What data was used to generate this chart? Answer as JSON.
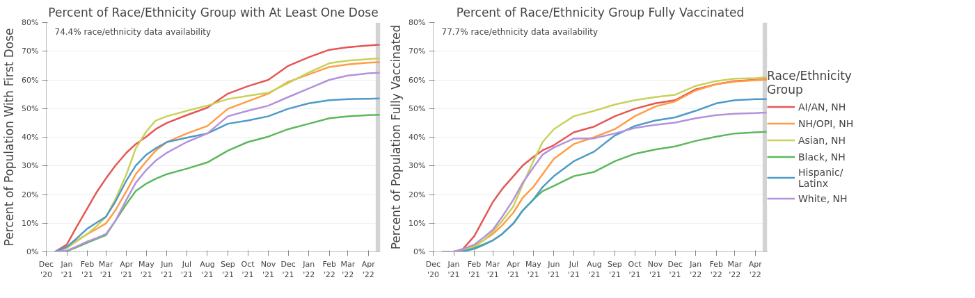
{
  "chart_data": [
    {
      "type": "line",
      "title": "Percent of Race/Ethnicity Group with At Least One Dose",
      "ylabel": "Percent of Population With First Dose",
      "annotations": [
        "74.4% race/ethnicity data availability"
      ],
      "x": [
        "2020-12-14",
        "2021-01-01",
        "2021-01-15",
        "2021-02-01",
        "2021-02-15",
        "2021-03-01",
        "2021-03-15",
        "2021-04-01",
        "2021-04-15",
        "2021-05-01",
        "2021-05-15",
        "2021-06-01",
        "2021-07-01",
        "2021-08-01",
        "2021-09-01",
        "2021-10-01",
        "2021-11-01",
        "2021-12-01",
        "2022-01-01",
        "2022-02-01",
        "2022-03-01",
        "2022-04-01",
        "2022-04-18"
      ],
      "series": [
        {
          "color": "#e45756",
          "values": [
            0,
            2.5,
            8.4,
            15.2,
            20.8,
            25.6,
            30,
            34.6,
            37.6,
            40.2,
            42.8,
            45,
            47.7,
            50.3,
            55.2,
            57.8,
            60,
            64.9,
            67.9,
            70.5,
            71.4,
            72,
            72.3
          ]
        },
        {
          "color": "#ff9d45",
          "values": [
            0,
            1.7,
            3.8,
            6.2,
            8,
            9.9,
            14.4,
            21.2,
            27.1,
            31.6,
            35.3,
            38.3,
            41.3,
            43.9,
            49.9,
            52.5,
            55.2,
            59.3,
            61.9,
            64.5,
            65.4,
            66,
            66.2
          ]
        },
        {
          "color": "#c9d159",
          "values": [
            0,
            1.3,
            3.5,
            6.2,
            9,
            12.2,
            18.2,
            27.1,
            36.1,
            42,
            45.8,
            47.3,
            49.2,
            51,
            53.3,
            54.4,
            55.5,
            58.9,
            62.6,
            65.8,
            66.7,
            67.3,
            67.5
          ]
        },
        {
          "color": "#5bb85b",
          "values": [
            0,
            0.2,
            1.5,
            3.2,
            4.5,
            5.8,
            10.7,
            16.7,
            21.2,
            23.8,
            25.5,
            27.1,
            29,
            31.2,
            35.3,
            38.3,
            40.2,
            42.8,
            44.7,
            46.6,
            47.3,
            47.7,
            47.8
          ]
        },
        {
          "color": "#4e9ac8",
          "values": [
            0,
            1.7,
            4.5,
            8.1,
            10.2,
            12.2,
            17.4,
            24.9,
            30.1,
            33.9,
            36.1,
            38.3,
            39.8,
            41.3,
            44.7,
            45.8,
            47.3,
            49.9,
            51.8,
            52.9,
            53.3,
            53.4,
            53.5
          ]
        },
        {
          "color": "#b392dc",
          "values": [
            0,
            0.4,
            1.8,
            3.6,
            4.8,
            6.2,
            10.7,
            18.2,
            24.1,
            28.6,
            31.8,
            34.6,
            38.3,
            41.3,
            47.3,
            49.2,
            51,
            54,
            57,
            60,
            61.5,
            62.3,
            62.5
          ]
        }
      ],
      "xlim": [
        "2020-12-01",
        "2022-04-19"
      ],
      "xticks": [
        {
          "value": "2020-12-01",
          "label": "Dec\n'20"
        },
        {
          "value": "2021-01-01",
          "label": "Jan\n'21"
        },
        {
          "value": "2021-02-01",
          "label": "Feb\n'21"
        },
        {
          "value": "2021-03-01",
          "label": "Mar\n'21"
        },
        {
          "value": "2021-04-01",
          "label": "Apr\n'21"
        },
        {
          "value": "2021-05-01",
          "label": "May\n'21"
        },
        {
          "value": "2021-06-01",
          "label": "Jun\n'21"
        },
        {
          "value": "2021-07-01",
          "label": "Jul\n'21"
        },
        {
          "value": "2021-08-01",
          "label": "Aug\n'21"
        },
        {
          "value": "2021-09-01",
          "label": "Sep\n'21"
        },
        {
          "value": "2021-10-01",
          "label": "Oct\n'21"
        },
        {
          "value": "2021-11-01",
          "label": "Nov\n'21"
        },
        {
          "value": "2021-12-01",
          "label": "Dec\n'21"
        },
        {
          "value": "2022-01-01",
          "label": "Jan\n'22"
        },
        {
          "value": "2022-02-01",
          "label": "Feb\n'22"
        },
        {
          "value": "2022-03-01",
          "label": "Mar\n'22"
        },
        {
          "value": "2022-04-01",
          "label": "Apr\n'22"
        }
      ],
      "ylim": [
        0,
        80
      ],
      "yticks": [
        {
          "value": 0,
          "label": "0%"
        },
        {
          "value": 10,
          "label": "10%"
        },
        {
          "value": 20,
          "label": "20%"
        },
        {
          "value": 30,
          "label": "30%"
        },
        {
          "value": 40,
          "label": "40%"
        },
        {
          "value": 50,
          "label": "50%"
        },
        {
          "value": 60,
          "label": "60%"
        },
        {
          "value": 70,
          "label": "70%"
        },
        {
          "value": 80,
          "label": "80%"
        }
      ],
      "bands": [
        {
          "axis": "x",
          "from": "2022-04-12",
          "to": "2022-04-19",
          "color": "#d3d3d3"
        }
      ],
      "grid": "y"
    },
    {
      "type": "line",
      "title": "Percent of Race/Ethnicity Group Fully Vaccinated",
      "ylabel": "Percent of Population Fully Vaccinated",
      "annotations": [
        "77.7% race/ethnicity data availability"
      ],
      "legend_title": "Race/Ethnicity\nGroup",
      "x": [
        "2020-12-14",
        "2021-01-01",
        "2021-01-15",
        "2021-02-01",
        "2021-02-15",
        "2021-03-01",
        "2021-03-15",
        "2021-04-01",
        "2021-04-15",
        "2021-05-01",
        "2021-05-15",
        "2021-06-01",
        "2021-07-01",
        "2021-08-01",
        "2021-09-01",
        "2021-10-01",
        "2021-11-01",
        "2021-12-01",
        "2022-01-01",
        "2022-02-01",
        "2022-03-01",
        "2022-04-01",
        "2022-04-18"
      ],
      "series": [
        {
          "name": "AI/AN, NH",
          "color": "#e45756",
          "values": [
            0,
            0,
            1,
            5.5,
            11.4,
            17.4,
            21.9,
            26.4,
            30.1,
            33.1,
            35.4,
            37.2,
            41.7,
            43.7,
            47.3,
            49.9,
            51.8,
            52.9,
            56.7,
            58.5,
            59.6,
            60,
            60.2
          ]
        },
        {
          "name": "NH/OPI, NH",
          "color": "#ff9d45",
          "values": [
            null,
            null,
            0.6,
            2.1,
            4,
            6.2,
            9.2,
            13.7,
            18.9,
            22.6,
            27.1,
            32.4,
            37.6,
            40,
            42.8,
            47.3,
            50.7,
            52.5,
            56.3,
            58.5,
            59.4,
            59.9,
            60
          ]
        },
        {
          "name": "Asian, NH",
          "color": "#c9d159",
          "values": [
            0,
            0,
            0.6,
            1.7,
            4,
            7,
            10.7,
            15.9,
            23.4,
            31.6,
            38.3,
            42.8,
            47.3,
            49.2,
            51.4,
            52.9,
            54,
            54.8,
            57.9,
            59.6,
            60.4,
            60.6,
            60.9
          ]
        },
        {
          "name": "Black, NH",
          "color": "#5bb85b",
          "values": [
            0,
            0,
            0.2,
            1.3,
            2.6,
            4,
            6.2,
            9.9,
            14.4,
            18.2,
            21.2,
            23,
            26.4,
            27.9,
            31.6,
            34.2,
            35.7,
            36.8,
            38.7,
            40.2,
            41.3,
            41.7,
            41.9
          ]
        },
        {
          "name": "Hispanic/\nLatinx",
          "color": "#4e9ac8",
          "values": [
            0,
            0,
            0.2,
            1,
            2.4,
            4,
            6.2,
            9.9,
            14.4,
            18.2,
            22.6,
            26.4,
            31.6,
            35,
            40.6,
            43.9,
            45.8,
            46.9,
            49.2,
            51.8,
            52.9,
            53.3,
            53.3
          ]
        },
        {
          "name": "White, NH",
          "color": "#b392dc",
          "values": [
            0,
            0,
            1,
            2.5,
            5,
            7.7,
            12.2,
            18.2,
            24.1,
            29.4,
            33.9,
            36.4,
            39.5,
            39.6,
            41.3,
            43.2,
            44.3,
            45.1,
            46.6,
            47.7,
            48.2,
            48.4,
            48.6
          ]
        }
      ],
      "xlim": [
        "2020-12-01",
        "2022-04-19"
      ],
      "xticks": [
        {
          "value": "2020-12-01",
          "label": "Dec\n'20"
        },
        {
          "value": "2021-01-01",
          "label": "Jan\n'21"
        },
        {
          "value": "2021-02-01",
          "label": "Feb\n'21"
        },
        {
          "value": "2021-03-01",
          "label": "Mar\n'21"
        },
        {
          "value": "2021-04-01",
          "label": "Apr\n'21"
        },
        {
          "value": "2021-05-01",
          "label": "May\n'21"
        },
        {
          "value": "2021-06-01",
          "label": "Jun\n'21"
        },
        {
          "value": "2021-07-01",
          "label": "Jul\n'21"
        },
        {
          "value": "2021-08-01",
          "label": "Aug\n'21"
        },
        {
          "value": "2021-09-01",
          "label": "Sep\n'21"
        },
        {
          "value": "2021-10-01",
          "label": "Oct\n'21"
        },
        {
          "value": "2021-11-01",
          "label": "Nov\n'21"
        },
        {
          "value": "2021-12-01",
          "label": "Dec\n'21"
        },
        {
          "value": "2022-01-01",
          "label": "Jan\n'22"
        },
        {
          "value": "2022-02-01",
          "label": "Feb\n'22"
        },
        {
          "value": "2022-03-01",
          "label": "Mar\n'22"
        },
        {
          "value": "2022-04-01",
          "label": "Apr\n'22"
        }
      ],
      "ylim": [
        0,
        80
      ],
      "yticks": [
        {
          "value": 0,
          "label": "0%"
        },
        {
          "value": 10,
          "label": "10%"
        },
        {
          "value": 20,
          "label": "20%"
        },
        {
          "value": 30,
          "label": "30%"
        },
        {
          "value": 40,
          "label": "40%"
        },
        {
          "value": 50,
          "label": "50%"
        },
        {
          "value": 60,
          "label": "60%"
        },
        {
          "value": 70,
          "label": "70%"
        },
        {
          "value": 80,
          "label": "80%"
        }
      ],
      "bands": [
        {
          "axis": "x",
          "from": "2022-04-12",
          "to": "2022-04-19",
          "color": "#d3d3d3"
        }
      ],
      "grid": "y",
      "legend": "right"
    }
  ]
}
